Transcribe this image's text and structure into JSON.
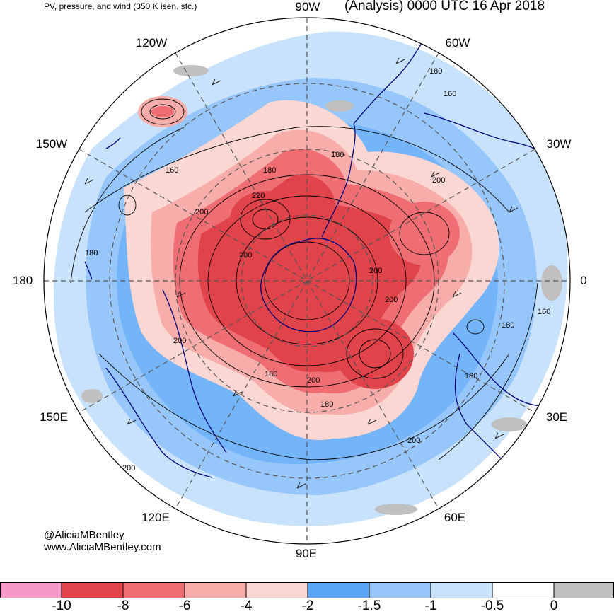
{
  "header": {
    "left_title": "PV, pressure, and wind (350 K isen. sfc.)",
    "right_title": "(Analysis) 0000 UTC 16 Apr 2018"
  },
  "credits": {
    "line1": "@AliciaMBentley",
    "line2": "www.AliciaMBentley.com"
  },
  "longitude_labels": {
    "l_90w": "90W",
    "l_60w": "60W",
    "l_30w": "30W",
    "l_0": "0",
    "l_30e": "30E",
    "l_60e": "60E",
    "l_90e": "90E",
    "l_120e": "120E",
    "l_150e": "150E",
    "l_180": "180",
    "l_150w": "150W",
    "l_120w": "120W"
  },
  "contour_labels": [
    "180",
    "160",
    "180",
    "180",
    "160",
    "220",
    "200",
    "200",
    "180",
    "200",
    "200",
    "200",
    "160",
    "180",
    "200",
    "180",
    "200",
    "180",
    "180",
    "200",
    "200"
  ],
  "colorbar": {
    "ticks": [
      "-10",
      "-8",
      "-6",
      "-4",
      "-2",
      "-1.5",
      "-1",
      "-0.5",
      "0"
    ],
    "colors": [
      "#f59ac8",
      "#e0434a",
      "#ef6e74",
      "#f7aeab",
      "#fbd7d4",
      "#5aa5f5",
      "#96c6fa",
      "#c8e2fc",
      "#ffffff",
      "#c0c0c0"
    ]
  },
  "colors": {
    "pv_strong": "#e0434a",
    "pv_medium": "#ef6e74",
    "pv_light": "#f7aeab",
    "pv_faint": "#fbd7d4",
    "blue_dark": "#5aa5f5",
    "blue_mid": "#96c6fa",
    "blue_light": "#c8e2fc",
    "gray": "#c0c0c0",
    "coastline": "#00007a"
  }
}
